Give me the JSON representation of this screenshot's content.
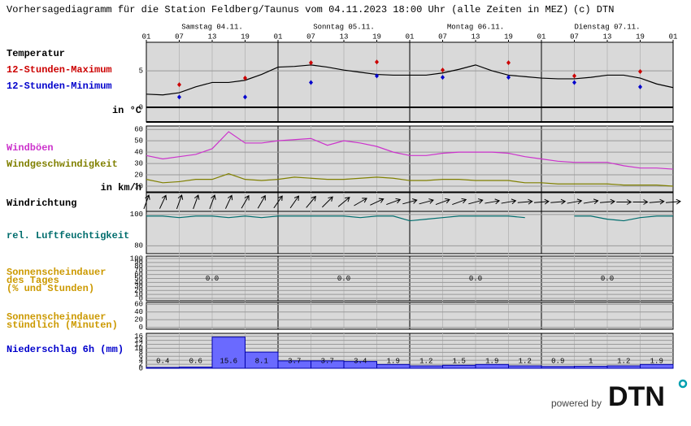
{
  "header": {
    "title": "Vorhersagediagramm für die Station Feldberg/Taunus vom 04.11.2023 18:00 Uhr (alle Zeiten in MEZ)",
    "copyright": "(c) DTN",
    "days": [
      "Samstag 04.11.",
      "Sonntag 05.11.",
      "Montag 06.11.",
      "Dienstag 07.11."
    ],
    "time_ticks": [
      "01",
      "07",
      "13",
      "19",
      "01",
      "07",
      "13",
      "19",
      "01",
      "07",
      "13",
      "19",
      "01",
      "07",
      "13",
      "19",
      "01"
    ]
  },
  "chart_data": [
    {
      "type": "temperature",
      "title": "Temperatur",
      "unit_label": "in °C",
      "color": "#000000",
      "ylim": [
        -2,
        8.9
      ],
      "yticks": [
        0,
        5
      ],
      "values": [
        1.8,
        1.7,
        2.0,
        2.8,
        3.4,
        3.4,
        3.7,
        4.5,
        5.5,
        5.6,
        5.8,
        5.5,
        5.1,
        4.8,
        4.5,
        4.4,
        4.4,
        4.4,
        4.7,
        5.2,
        5.8,
        5.0,
        4.4,
        4.2,
        4.0,
        3.9,
        3.9,
        4.1,
        4.4,
        4.4,
        4.0,
        3.2,
        2.7
      ],
      "series": [
        {
          "name": "12-Stunden-Maximum",
          "color": "#cc0000",
          "values": [
            null,
            3.1,
            null,
            4.0,
            null,
            6.1,
            null,
            6.2,
            null,
            5.1,
            null,
            6.1,
            null,
            4.3,
            null,
            4.9,
            null
          ]
        },
        {
          "name": "12-Stunden-Minimum",
          "color": "#0000cc",
          "values": [
            null,
            1.4,
            null,
            1.4,
            null,
            3.4,
            null,
            4.3,
            null,
            4.1,
            null,
            4.1,
            null,
            3.4,
            null,
            2.8,
            null
          ]
        }
      ]
    },
    {
      "type": "line",
      "unit_label": "in km/h",
      "ylim": [
        5,
        63
      ],
      "yticks": [
        10,
        20,
        30,
        40,
        50,
        60
      ],
      "series": [
        {
          "name": "Windböen",
          "color": "#cc33cc",
          "values": [
            37,
            34,
            36,
            38,
            43,
            58,
            48,
            48,
            50,
            51,
            52,
            46,
            50,
            48,
            45,
            40,
            37,
            37,
            39,
            40,
            40,
            40,
            39,
            36,
            34,
            32,
            31,
            31,
            31,
            28,
            26,
            26,
            25
          ]
        },
        {
          "name": "Windgeschwindigkeit",
          "color": "#808000",
          "values": [
            16,
            13,
            14,
            16,
            16,
            21,
            16,
            15,
            16,
            18,
            17,
            16,
            16,
            17,
            18,
            17,
            15,
            15,
            16,
            16,
            15,
            15,
            15,
            13,
            13,
            12,
            12,
            12,
            12,
            11,
            11,
            11,
            10
          ]
        }
      ]
    },
    {
      "type": "arrows",
      "title": "Windrichtung",
      "values": [
        200,
        205,
        200,
        200,
        200,
        205,
        210,
        210,
        215,
        215,
        220,
        225,
        230,
        240,
        245,
        250,
        255,
        255,
        250,
        250,
        255,
        260,
        260,
        265,
        265,
        265,
        260,
        260,
        265,
        270,
        270,
        265,
        265
      ]
    },
    {
      "type": "line",
      "ylim": [
        75,
        102
      ],
      "yticks": [
        80,
        100
      ],
      "series": [
        {
          "name": "rel. Luftfeuchtigkeit",
          "color": "#006d6d",
          "values": [
            99,
            99,
            98,
            99,
            99,
            98,
            99,
            98,
            99,
            99,
            99,
            99,
            99,
            98,
            99,
            99,
            96,
            97,
            98,
            99,
            99,
            99,
            99,
            98,
            null,
            null,
            99,
            99,
            97,
            96,
            98,
            99,
            99
          ]
        }
      ]
    },
    {
      "type": "daylabels",
      "title_lines": [
        "Sonnenscheindauer",
        "des Tages",
        "(% und Stunden)"
      ],
      "color": "#cc9900",
      "ylim": [
        -6,
        106
      ],
      "yticks": [
        0,
        10,
        20,
        30,
        40,
        50,
        60,
        70,
        80,
        90,
        100
      ],
      "values": [
        0,
        0,
        0,
        0
      ],
      "value_labels": [
        "0.0",
        "0.0",
        "0.0",
        "0.0"
      ]
    },
    {
      "type": "empty",
      "title_lines": [
        "Sonnenscheindauer",
        "stündlich (Minuten)"
      ],
      "color": "#cc9900",
      "ylim": [
        -5,
        65
      ],
      "yticks": [
        0,
        20,
        40,
        60
      ]
    },
    {
      "type": "bar",
      "title": "Niederschlag 6h (mm)",
      "color": "#0000cc",
      "bar_color": "#6a6aff",
      "ylim": [
        0,
        17.5
      ],
      "yticks": [
        0,
        2,
        4,
        6,
        8,
        10,
        12,
        14,
        16
      ],
      "values": [
        0.4,
        0.6,
        15.6,
        8.1,
        3.7,
        3.7,
        3.4,
        1.9,
        1.2,
        1.5,
        1.9,
        1.2,
        0.9,
        1,
        1.2,
        1.9
      ]
    }
  ],
  "footer": {
    "powered": "powered by",
    "logo": "DTN"
  }
}
